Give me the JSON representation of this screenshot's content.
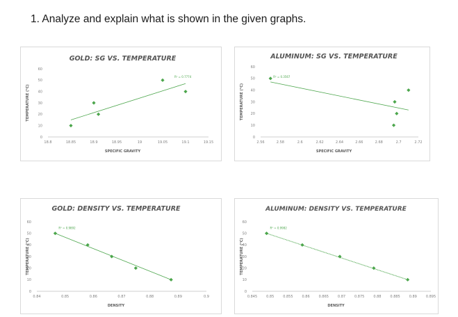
{
  "question": "1.  Analyze and explain what is shown in the given graphs.",
  "chart_data": [
    {
      "type": "scatter",
      "title": "GOLD: SG VS. TEMPERATURE",
      "xlabel": "SPECIFIC GRAVITY",
      "ylabel": "TEMPERATURE (°C)",
      "xlim": [
        18.8,
        19.15
      ],
      "ylim": [
        0,
        60
      ],
      "xticks": [
        "18.8",
        "18.85",
        "18.9",
        "18.95",
        "19",
        "19.05",
        "19.1",
        "19.15"
      ],
      "yticks": [
        "0",
        "10",
        "20",
        "30",
        "40",
        "50",
        "60"
      ],
      "x": [
        18.85,
        18.9,
        18.91,
        19.05,
        19.1
      ],
      "y": [
        10,
        30,
        20,
        50,
        40
      ],
      "trendline": {
        "x": [
          18.85,
          19.1
        ],
        "y": [
          15,
          47
        ]
      },
      "r2_label": "R² = 0.7774",
      "color": "#4ca64c",
      "grid": false
    },
    {
      "type": "scatter",
      "title": "ALUMINUM: SG VS. TEMPERATURE",
      "xlabel": "SPECIFIC GRAVITY",
      "ylabel": "TEMPERATURE (°C)",
      "xlim": [
        2.56,
        2.72
      ],
      "ylim": [
        0,
        60
      ],
      "xticks": [
        "2.56",
        "2.58",
        "2.6",
        "2.62",
        "2.64",
        "2.66",
        "2.68",
        "2.7",
        "2.72"
      ],
      "yticks": [
        "0",
        "10",
        "20",
        "30",
        "40",
        "50",
        "60"
      ],
      "x": [
        2.57,
        2.695,
        2.696,
        2.698,
        2.71
      ],
      "y": [
        50,
        10,
        30,
        20,
        40
      ],
      "trendline": {
        "x": [
          2.57,
          2.71
        ],
        "y": [
          47,
          23
        ]
      },
      "r2_label": "R² = 0.3567",
      "color": "#4ca64c",
      "grid": false
    },
    {
      "type": "scatter",
      "title": "GOLD: DENSITY VS. TEMPERATURE",
      "xlabel": "DENSITY",
      "ylabel": "TEMPERATURE (°C)",
      "xlim": [
        0.84,
        0.9
      ],
      "ylim": [
        0,
        60
      ],
      "xticks": [
        "0.84",
        "0.85",
        "0.86",
        "0.87",
        "0.88",
        "0.89",
        "0.9"
      ],
      "yticks": [
        "0",
        "10",
        "20",
        "30",
        "40",
        "50",
        "60"
      ],
      "x": [
        0.8465,
        0.858,
        0.8665,
        0.875,
        0.8875
      ],
      "y": [
        50,
        40,
        30,
        20,
        10
      ],
      "trendline": {
        "x": [
          0.8465,
          0.8875
        ],
        "y": [
          50,
          10
        ]
      },
      "r2_label": "R² = 0.9892",
      "color": "#4ca64c",
      "grid": false
    },
    {
      "type": "scatter",
      "title": "ALUMINUM: DENSITY VS. TEMPERATURE",
      "xlabel": "DENSITY",
      "ylabel": "TEMPERATURE (°C)",
      "xlim": [
        0.845,
        0.895
      ],
      "ylim": [
        0,
        60
      ],
      "xticks": [
        "0.845",
        "0.85",
        "0.855",
        "0.86",
        "0.865",
        "0.87",
        "0.875",
        "0.88",
        "0.885",
        "0.89",
        "0.895"
      ],
      "yticks": [
        "0",
        "10",
        "20",
        "30",
        "40",
        "50",
        "60"
      ],
      "x": [
        0.849,
        0.859,
        0.8695,
        0.879,
        0.8885
      ],
      "y": [
        50,
        40,
        30,
        20,
        10
      ],
      "trendline": {
        "x": [
          0.849,
          0.8885
        ],
        "y": [
          50,
          10
        ],
        "style": "dotted"
      },
      "r2_label": "R² = 0.9982",
      "color": "#4ca64c",
      "grid": false
    }
  ]
}
